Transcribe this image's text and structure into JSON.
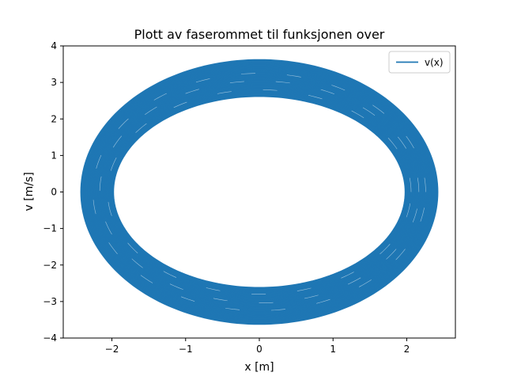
{
  "chart_data": {
    "type": "line",
    "title": "Plott av faserommet til funksjonen over",
    "xlabel": "x [m]",
    "ylabel": "v [m/s]",
    "xlim": [
      -2.66,
      2.66
    ],
    "ylim": [
      -4,
      4
    ],
    "x_ticks": [
      -2,
      -1,
      0,
      1,
      2
    ],
    "x_tick_labels": [
      "−2",
      "−1",
      "0",
      "1",
      "2"
    ],
    "y_ticks": [
      -4,
      -3,
      -2,
      -1,
      0,
      1,
      2,
      3,
      4
    ],
    "y_tick_labels": [
      "−4",
      "−3",
      "−2",
      "−1",
      "0",
      "1",
      "2",
      "3",
      "4"
    ],
    "grid": false,
    "legend": {
      "position": "top-right",
      "entries": [
        "v(x)"
      ]
    },
    "series": [
      {
        "name": "v(x)",
        "color": "#1f77b4",
        "shape": "closed-orbits",
        "description_values": {
          "x_amplitude_range": [
            1.98,
            2.42
          ],
          "v_amplitude_range": [
            2.62,
            3.62
          ]
        }
      }
    ]
  }
}
